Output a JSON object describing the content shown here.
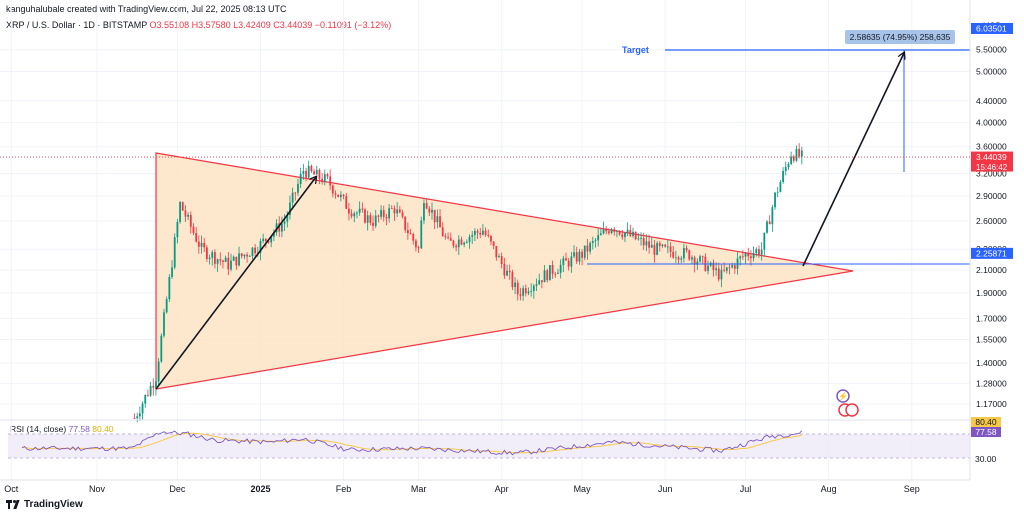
{
  "header": {
    "created": "kanguhalubale created with TradingView.com, Jul 22, 2025 08:13 UTC",
    "symbol": "XRP / U.S. Dollar · 1D · BITSTAMP",
    "open": "O3.55108",
    "high": "H3.57580",
    "low": "L3.42409",
    "close": "C3.44039",
    "change": "−0.11091 (−3.12%)"
  },
  "currency": "USD",
  "branding": "TradingView",
  "rsi": {
    "label": "RSI (14, close)",
    "value": "77.58",
    "ma_value": "80.40"
  },
  "colors": {
    "up": "#089981",
    "down": "#f23645",
    "triangle_fill": "#fde3c4",
    "triangle_stroke": "#f23645",
    "level": "#2962ff",
    "rsi": "#7e57c2",
    "rsi_ma": "#f7c948"
  },
  "chart_data": {
    "type": "candlestick",
    "title": "",
    "x_axis": {
      "ticks": [
        {
          "label": "Oct",
          "day": -32
        },
        {
          "label": "Nov",
          "day": 0
        },
        {
          "label": "Dec",
          "day": 30
        },
        {
          "label": "2025",
          "day": 61
        },
        {
          "label": "Feb",
          "day": 92
        },
        {
          "label": "Mar",
          "day": 120
        },
        {
          "label": "Apr",
          "day": 151
        },
        {
          "label": "May",
          "day": 181
        },
        {
          "label": "Jun",
          "day": 212
        },
        {
          "label": "Jul",
          "day": 242
        },
        {
          "label": "Aug",
          "day": 273
        },
        {
          "label": "Sep",
          "day": 304
        }
      ],
      "range": [
        "2024-10-01",
        "2025-09-05"
      ]
    },
    "y_axis": {
      "scale": "log",
      "range": [
        1.1,
        6.6
      ],
      "ticks": [
        "5.50000",
        "5.00000",
        "4.40000",
        "4.00000",
        "3.60000",
        "3.20000",
        "2.90000",
        "2.60000",
        "2.30000",
        "2.10000",
        "1.90000",
        "1.70000",
        "1.55000",
        "1.40000",
        "1.28000",
        "1.17000"
      ]
    },
    "price_labels": [
      {
        "value": "6.03501",
        "price": 6.03501,
        "role": "target"
      },
      {
        "value": "3.44039",
        "price": 3.44039,
        "role": "last",
        "countdown": "15:46:42"
      },
      {
        "value": "2.25871",
        "price": 2.25871,
        "role": "breakout"
      }
    ],
    "measure_label": "2.58635 (74.95%) 258,635",
    "target_label": "Target",
    "price_points": [
      [
        "2024-11-15",
        1.1
      ],
      [
        "2024-11-23",
        1.32
      ],
      [
        "2024-12-02",
        2.8
      ],
      [
        "2024-12-10",
        2.3
      ],
      [
        "2024-12-20",
        2.15
      ],
      [
        "2025-01-01",
        2.35
      ],
      [
        "2025-01-10",
        2.6
      ],
      [
        "2025-01-17",
        3.25
      ],
      [
        "2025-01-26",
        3.1
      ],
      [
        "2025-02-03",
        2.75
      ],
      [
        "2025-02-12",
        2.6
      ],
      [
        "2025-02-20",
        2.75
      ],
      [
        "2025-03-01",
        2.3
      ],
      [
        "2025-03-03",
        2.9
      ],
      [
        "2025-03-12",
        2.35
      ],
      [
        "2025-03-25",
        2.5
      ],
      [
        "2025-04-07",
        1.9
      ],
      [
        "2025-04-20",
        2.1
      ],
      [
        "2025-05-01",
        2.25
      ],
      [
        "2025-05-12",
        2.55
      ],
      [
        "2025-05-28",
        2.3
      ],
      [
        "2025-06-10",
        2.25
      ],
      [
        "2025-06-22",
        2.05
      ],
      [
        "2025-07-01",
        2.25
      ],
      [
        "2025-07-07",
        2.3
      ],
      [
        "2025-07-12",
        2.9
      ],
      [
        "2025-07-18",
        3.5
      ],
      [
        "2025-07-22",
        3.44
      ]
    ],
    "rsi_axis": {
      "ticks": [
        "30.00"
      ]
    },
    "rsi_points": [
      [
        "2024-11-15",
        48
      ],
      [
        "2024-11-25",
        80
      ],
      [
        "2024-12-05",
        75
      ],
      [
        "2024-12-15",
        62
      ],
      [
        "2025-01-05",
        58
      ],
      [
        "2025-01-17",
        65
      ],
      [
        "2025-02-03",
        42
      ],
      [
        "2025-03-01",
        45
      ],
      [
        "2025-04-07",
        35
      ],
      [
        "2025-05-12",
        58
      ],
      [
        "2025-06-22",
        40
      ],
      [
        "2025-07-10",
        70
      ],
      [
        "2025-07-22",
        77.58
      ]
    ]
  }
}
